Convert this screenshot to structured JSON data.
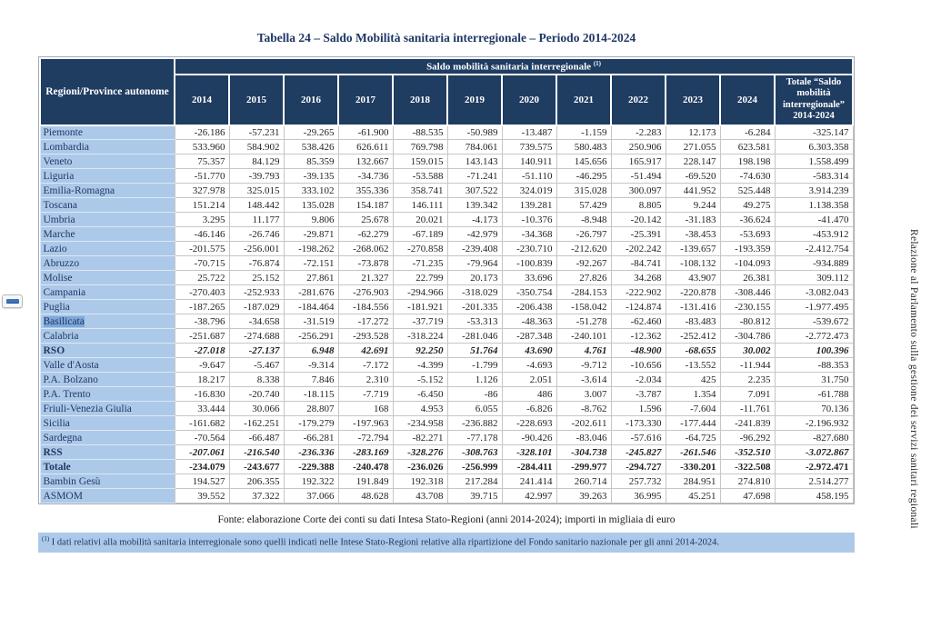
{
  "page": {
    "title": "Tabella 24 – Saldo Mobilità sanitaria interregionale – Periodo 2014-2024",
    "fonte": "Fonte: elaborazione Corte dei conti su dati Intesa Stato-Regioni (anni 2014-2024); importi in migliaia di euro",
    "footnote_marker": "(1)",
    "footnote": " I dati relativi alla mobilità sanitaria interregionale sono quelli indicati nelle Intese Stato-Regioni relative alla ripartizione del Fondo sanitario nazionale per gli anni 2014-2024.",
    "side_text": "Relazione al Parlamento sulla gestione dei servizi sanitari regionali"
  },
  "colors": {
    "header_navy": "#1f3c61",
    "region_column_blue": "#adc9e9",
    "selection_blue": "#7da7d9",
    "grid_gray": "#c6c6c6",
    "label_navy": "#1f3864"
  },
  "table": {
    "corner_header": "Regioni/Province autonome",
    "group_header": "Saldo mobilità sanitaria interregionale ",
    "group_header_sup": "(1)",
    "years": [
      "2014",
      "2015",
      "2016",
      "2017",
      "2018",
      "2019",
      "2020",
      "2021",
      "2022",
      "2023",
      "2024"
    ],
    "total_header": "Totale “Saldo mobilità interregionale” 2014-2024",
    "rows": [
      {
        "label": "Piemonte",
        "emphasis": "none",
        "highlight": false,
        "values": [
          "-26.186",
          "-57.231",
          "-29.265",
          "-61.900",
          "-88.535",
          "-50.989",
          "-13.487",
          "-1.159",
          "-2.283",
          "12.173",
          "-6.284",
          "-325.147"
        ]
      },
      {
        "label": "Lombardia",
        "emphasis": "none",
        "highlight": false,
        "values": [
          "533.960",
          "584.902",
          "538.426",
          "626.611",
          "769.798",
          "784.061",
          "739.575",
          "580.483",
          "250.906",
          "271.055",
          "623.581",
          "6.303.358"
        ]
      },
      {
        "label": "Veneto",
        "emphasis": "none",
        "highlight": false,
        "values": [
          "75.357",
          "84.129",
          "85.359",
          "132.667",
          "159.015",
          "143.143",
          "140.911",
          "145.656",
          "165.917",
          "228.147",
          "198.198",
          "1.558.499"
        ]
      },
      {
        "label": "Liguria",
        "emphasis": "none",
        "highlight": false,
        "values": [
          "-51.770",
          "-39.793",
          "-39.135",
          "-34.736",
          "-53.588",
          "-71.241",
          "-51.110",
          "-46.295",
          "-51.494",
          "-69.520",
          "-74.630",
          "-583.314"
        ]
      },
      {
        "label": "Emilia-Romagna",
        "emphasis": "none",
        "highlight": false,
        "values": [
          "327.978",
          "325.015",
          "333.102",
          "355.336",
          "358.741",
          "307.522",
          "324.019",
          "315.028",
          "300.097",
          "441.952",
          "525.448",
          "3.914.239"
        ]
      },
      {
        "label": "Toscana",
        "emphasis": "none",
        "highlight": false,
        "values": [
          "151.214",
          "148.442",
          "135.028",
          "154.187",
          "146.111",
          "139.342",
          "139.281",
          "57.429",
          "8.805",
          "9.244",
          "49.275",
          "1.138.358"
        ]
      },
      {
        "label": "Umbria",
        "emphasis": "none",
        "highlight": false,
        "values": [
          "3.295",
          "11.177",
          "9.806",
          "25.678",
          "20.021",
          "-4.173",
          "-10.376",
          "-8.948",
          "-20.142",
          "-31.183",
          "-36.624",
          "-41.470"
        ]
      },
      {
        "label": "Marche",
        "emphasis": "none",
        "highlight": false,
        "values": [
          "-46.146",
          "-26.746",
          "-29.871",
          "-62.279",
          "-67.189",
          "-42.979",
          "-34.368",
          "-26.797",
          "-25.391",
          "-38.453",
          "-53.693",
          "-453.912"
        ]
      },
      {
        "label": "Lazio",
        "emphasis": "none",
        "highlight": false,
        "values": [
          "-201.575",
          "-256.001",
          "-198.262",
          "-268.062",
          "-270.858",
          "-239.408",
          "-230.710",
          "-212.620",
          "-202.242",
          "-139.657",
          "-193.359",
          "-2.412.754"
        ]
      },
      {
        "label": "Abruzzo",
        "emphasis": "none",
        "highlight": false,
        "values": [
          "-70.715",
          "-76.874",
          "-72.151",
          "-73.878",
          "-71.235",
          "-79.964",
          "-100.839",
          "-92.267",
          "-84.741",
          "-108.132",
          "-104.093",
          "-934.889"
        ]
      },
      {
        "label": "Molise",
        "emphasis": "none",
        "highlight": false,
        "values": [
          "25.722",
          "25.152",
          "27.861",
          "21.327",
          "22.799",
          "20.173",
          "33.696",
          "27.826",
          "34.268",
          "43.907",
          "26.381",
          "309.112"
        ]
      },
      {
        "label": "Campania",
        "emphasis": "none",
        "highlight": false,
        "values": [
          "-270.403",
          "-252.933",
          "-281.676",
          "-276.903",
          "-294.966",
          "-318.029",
          "-350.754",
          "-284.153",
          "-222.902",
          "-220.878",
          "-308.446",
          "-3.082.043"
        ]
      },
      {
        "label": "Puglia",
        "emphasis": "none",
        "highlight": false,
        "values": [
          "-187.265",
          "-187.029",
          "-184.464",
          "-184.556",
          "-181.921",
          "-201.335",
          "-206.438",
          "-158.042",
          "-124.874",
          "-131.416",
          "-230.155",
          "-1.977.495"
        ]
      },
      {
        "label": "Basilicata",
        "emphasis": "none",
        "highlight": true,
        "values": [
          "-38.796",
          "-34.658",
          "-31.519",
          "-17.272",
          "-37.719",
          "-53.313",
          "-48.363",
          "-51.278",
          "-62.460",
          "-83.483",
          "-80.812",
          "-539.672"
        ]
      },
      {
        "label": "Calabria",
        "emphasis": "none",
        "highlight": false,
        "values": [
          "-251.687",
          "-274.688",
          "-256.291",
          "-293.528",
          "-318.224",
          "-281.046",
          "-287.348",
          "-240.101",
          "-12.362",
          "-252.412",
          "-304.786",
          "-2.772.473"
        ]
      },
      {
        "label": "RSO",
        "emphasis": "bold-italic",
        "highlight": false,
        "values": [
          "-27.018",
          "-27.137",
          "6.948",
          "42.691",
          "92.250",
          "51.764",
          "43.690",
          "4.761",
          "-48.900",
          "-68.655",
          "30.002",
          "100.396"
        ]
      },
      {
        "label": "Valle d'Aosta",
        "emphasis": "none",
        "highlight": false,
        "values": [
          "-9.647",
          "-5.467",
          "-9.314",
          "-7.172",
          "-4.399",
          "-1.799",
          "-4.693",
          "-9.712",
          "-10.656",
          "-13.552",
          "-11.944",
          "-88.353"
        ]
      },
      {
        "label": "P.A. Bolzano",
        "emphasis": "none",
        "highlight": false,
        "values": [
          "18.217",
          "8.338",
          "7.846",
          "2.310",
          "-5.152",
          "1.126",
          "2.051",
          "-3.614",
          "-2.034",
          "425",
          "2.235",
          "31.750"
        ]
      },
      {
        "label": "P.A. Trento",
        "emphasis": "none",
        "highlight": false,
        "values": [
          "-16.830",
          "-20.740",
          "-18.115",
          "-7.719",
          "-6.450",
          "-86",
          "486",
          "3.007",
          "-3.787",
          "1.354",
          "7.091",
          "-61.788"
        ]
      },
      {
        "label": "Friuli-Venezia Giulia",
        "emphasis": "none",
        "highlight": false,
        "values": [
          "33.444",
          "30.066",
          "28.807",
          "168",
          "4.953",
          "6.055",
          "-6.826",
          "-8.762",
          "1.596",
          "-7.604",
          "-11.761",
          "70.136"
        ]
      },
      {
        "label": "Sicilia",
        "emphasis": "none",
        "highlight": false,
        "values": [
          "-161.682",
          "-162.251",
          "-179.279",
          "-197.963",
          "-234.958",
          "-236.882",
          "-228.693",
          "-202.611",
          "-173.330",
          "-177.444",
          "-241.839",
          "-2.196.932"
        ]
      },
      {
        "label": "Sardegna",
        "emphasis": "none",
        "highlight": false,
        "values": [
          "-70.564",
          "-66.487",
          "-66.281",
          "-72.794",
          "-82.271",
          "-77.178",
          "-90.426",
          "-83.046",
          "-57.616",
          "-64.725",
          "-96.292",
          "-827.680"
        ]
      },
      {
        "label": "RSS",
        "emphasis": "bold-italic",
        "highlight": false,
        "values": [
          "-207.061",
          "-216.540",
          "-236.336",
          "-283.169",
          "-328.276",
          "-308.763",
          "-328.101",
          "-304.738",
          "-245.827",
          "-261.546",
          "-352.510",
          "-3.072.867"
        ]
      },
      {
        "label": "Totale",
        "emphasis": "bold",
        "highlight": false,
        "values": [
          "-234.079",
          "-243.677",
          "-229.388",
          "-240.478",
          "-236.026",
          "-256.999",
          "-284.411",
          "-299.977",
          "-294.727",
          "-330.201",
          "-322.508",
          "-2.972.471"
        ]
      },
      {
        "label": "Bambin Gesù",
        "emphasis": "none",
        "highlight": false,
        "values": [
          "194.527",
          "206.355",
          "192.322",
          "191.849",
          "192.318",
          "217.284",
          "241.414",
          "260.714",
          "257.732",
          "284.951",
          "274.810",
          "2.514.277"
        ]
      },
      {
        "label": "ASMOM",
        "emphasis": "none",
        "highlight": false,
        "values": [
          "39.552",
          "37.322",
          "37.066",
          "48.628",
          "43.708",
          "39.715",
          "42.997",
          "39.263",
          "36.995",
          "45.251",
          "47.698",
          "458.195"
        ]
      }
    ]
  }
}
